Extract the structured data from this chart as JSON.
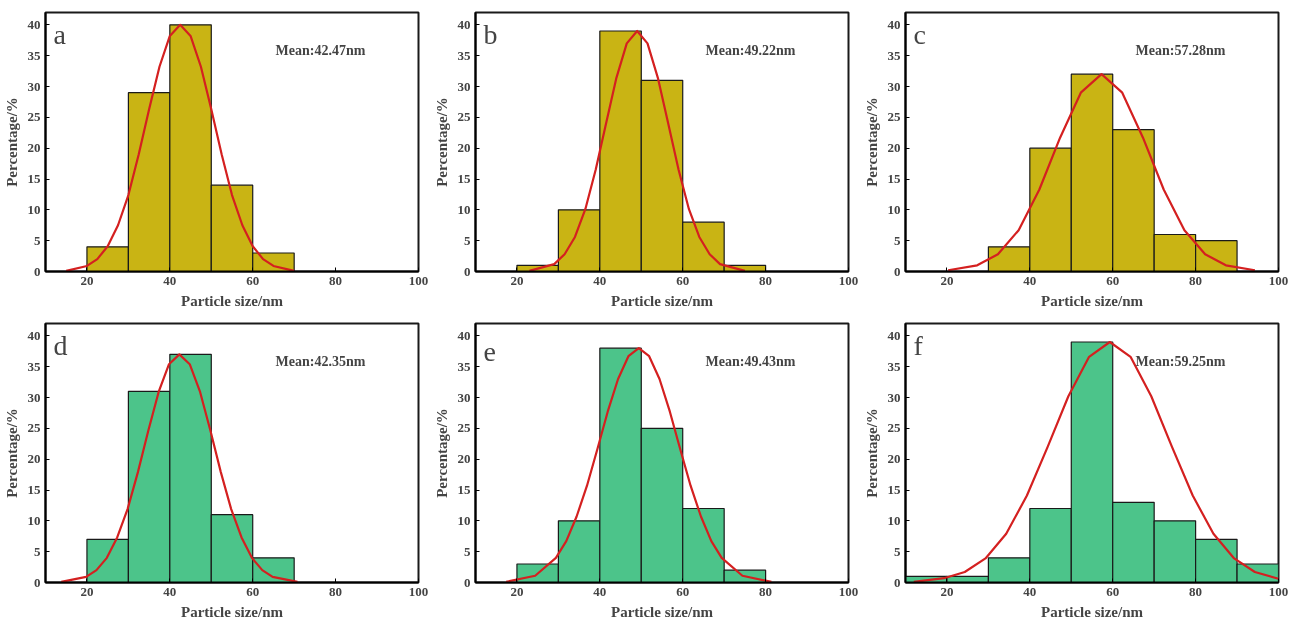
{
  "chart_data": [
    {
      "type": "histogram",
      "xlabel": "Particle size/nm",
      "ylabel": "Percentage/%",
      "annotations": [
        "a",
        "Mean:42.47nm"
      ],
      "xlim": [
        10,
        100
      ],
      "ylim": [
        0,
        42
      ],
      "xticks": [
        20,
        40,
        60,
        80,
        100
      ],
      "yticks": [
        0,
        5,
        10,
        15,
        20,
        25,
        30,
        35,
        40
      ],
      "grid": false,
      "line_style": "solid",
      "series": [
        {
          "color": "#c9b414",
          "bins": [
            20,
            30,
            40,
            50,
            60,
            70
          ],
          "values": [
            4,
            29,
            40,
            14,
            3
          ]
        },
        {
          "type": "line",
          "color": "#d42020",
          "x": [
            15,
            20,
            22.5,
            25,
            27.5,
            30,
            32.5,
            35,
            37.5,
            40,
            42.5,
            45,
            47.5,
            50,
            52.5,
            55,
            57.5,
            60,
            62.5,
            65,
            70
          ],
          "values": [
            0.1,
            0.9,
            2.0,
            4.1,
            7.5,
            12.4,
            19.0,
            26.3,
            33.2,
            38.2,
            40,
            38.2,
            33.2,
            26.3,
            19.0,
            12.4,
            7.5,
            4.1,
            2.0,
            0.9,
            0.1
          ]
        }
      ]
    },
    {
      "type": "histogram",
      "xlabel": "Particle size/nm",
      "ylabel": "Percentage/%",
      "annotations": [
        "b",
        "Mean:49.22nm"
      ],
      "xlim": [
        10,
        100
      ],
      "ylim": [
        0,
        42
      ],
      "xticks": [
        20,
        40,
        60,
        80,
        100
      ],
      "yticks": [
        0,
        5,
        10,
        15,
        20,
        25,
        30,
        35,
        40
      ],
      "grid": false,
      "line_style": "solid",
      "series": [
        {
          "color": "#c9b414",
          "bins": [
            20,
            30,
            40,
            50,
            60,
            70,
            80
          ],
          "values": [
            1,
            10,
            39,
            31,
            8,
            1
          ]
        },
        {
          "type": "line",
          "color": "#d42020",
          "x": [
            23,
            29,
            31.5,
            34,
            36.5,
            39,
            41.5,
            44,
            46.5,
            49,
            51.5,
            54,
            56.5,
            59,
            61.5,
            64,
            66.5,
            69,
            75
          ],
          "values": [
            0.1,
            1.2,
            2.8,
            5.6,
            10.1,
            16.5,
            24.0,
            31.4,
            37.0,
            39,
            37.0,
            31.4,
            24.0,
            16.5,
            10.1,
            5.6,
            2.8,
            1.2,
            0.1
          ]
        }
      ]
    },
    {
      "type": "histogram",
      "xlabel": "Particle size/nm",
      "ylabel": "Percentage/%",
      "annotations": [
        "c",
        "Mean:57.28nm"
      ],
      "xlim": [
        10,
        100
      ],
      "ylim": [
        0,
        42
      ],
      "xticks": [
        20,
        40,
        60,
        80,
        100
      ],
      "yticks": [
        0,
        5,
        10,
        15,
        20,
        25,
        30,
        35,
        40
      ],
      "grid": false,
      "line_style": "solid",
      "series": [
        {
          "color": "#c9b414",
          "bins": [
            30,
            40,
            50,
            60,
            70,
            80,
            90
          ],
          "values": [
            4,
            20,
            32,
            23,
            6,
            5
          ]
        },
        {
          "type": "line",
          "color": "#d42020",
          "x": [
            20.3,
            27.3,
            32.3,
            37.3,
            42.3,
            47.3,
            52.3,
            57.3,
            62.3,
            67.3,
            72.3,
            77.3,
            82.3,
            87.3,
            94.3
          ],
          "values": [
            0.2,
            1.0,
            2.8,
            6.7,
            13.3,
            21.7,
            29.0,
            32,
            29.0,
            21.7,
            13.3,
            6.7,
            2.8,
            1.0,
            0.2
          ]
        }
      ]
    },
    {
      "type": "histogram",
      "xlabel": "Particle size/nm",
      "ylabel": "Percentage/%",
      "annotations": [
        "d",
        "Mean:42.35nm"
      ],
      "xlim": [
        10,
        100
      ],
      "ylim": [
        0,
        42
      ],
      "xticks": [
        20,
        40,
        60,
        80,
        100
      ],
      "yticks": [
        0,
        5,
        10,
        15,
        20,
        25,
        30,
        35,
        40
      ],
      "grid": false,
      "line_style": "solid",
      "series": [
        {
          "color": "#4cc48a",
          "bins": [
            20,
            30,
            40,
            50,
            60,
            70
          ],
          "values": [
            7,
            31,
            37,
            11,
            4
          ]
        },
        {
          "type": "line",
          "color": "#d42020",
          "x": [
            13.8,
            19.8,
            22.3,
            24.8,
            27.3,
            29.8,
            32.3,
            34.8,
            37.3,
            39.8,
            42.3,
            44.8,
            47.3,
            49.8,
            52.3,
            54.8,
            57.3,
            59.8,
            62.3,
            64.8,
            70.8
          ],
          "values": [
            0.1,
            0.9,
            2.0,
            4.0,
            7.3,
            11.9,
            17.9,
            24.6,
            30.9,
            35.4,
            37,
            35.4,
            30.9,
            24.6,
            17.9,
            11.9,
            7.3,
            4.0,
            2.0,
            0.9,
            0.1
          ]
        }
      ]
    },
    {
      "type": "histogram",
      "xlabel": "Particle size/nm",
      "ylabel": "Percentage/%",
      "annotations": [
        "e",
        "Mean:49.43nm"
      ],
      "xlim": [
        10,
        100
      ],
      "ylim": [
        0,
        42
      ],
      "xticks": [
        20,
        40,
        60,
        80,
        100
      ],
      "yticks": [
        0,
        5,
        10,
        15,
        20,
        25,
        30,
        35,
        40
      ],
      "grid": false,
      "line_style": "solid",
      "series": [
        {
          "color": "#4cc48a",
          "bins": [
            20,
            30,
            40,
            50,
            60,
            70,
            80
          ],
          "values": [
            3,
            10,
            38,
            25,
            12,
            2
          ]
        },
        {
          "type": "line",
          "color": "#d42020",
          "x": [
            17.4,
            24.4,
            29.4,
            31.9,
            34.4,
            36.9,
            39.4,
            41.9,
            44.4,
            46.9,
            49.4,
            51.9,
            54.4,
            56.9,
            59.4,
            61.9,
            64.4,
            66.9,
            69.4,
            74.4,
            81.4
          ],
          "values": [
            0.1,
            1.1,
            4.0,
            6.7,
            10.7,
            15.7,
            21.6,
            27.7,
            33.0,
            36.7,
            38,
            36.7,
            33.0,
            27.7,
            21.6,
            15.7,
            10.7,
            6.7,
            4.0,
            1.1,
            0.1
          ]
        }
      ]
    },
    {
      "type": "histogram",
      "xlabel": "Particle size/nm",
      "ylabel": "Percentage/%",
      "annotations": [
        "f",
        "Mean:59.25nm"
      ],
      "xlim": [
        10,
        100
      ],
      "ylim": [
        0,
        42
      ],
      "xticks": [
        20,
        40,
        60,
        80,
        100
      ],
      "yticks": [
        0,
        5,
        10,
        15,
        20,
        25,
        30,
        35,
        40
      ],
      "grid": false,
      "line_style": "solid",
      "series": [
        {
          "color": "#4cc48a",
          "bins": [
            10,
            20,
            30,
            40,
            50,
            60,
            70,
            80,
            90,
            100
          ],
          "values": [
            1,
            1,
            4,
            12,
            39,
            13,
            10,
            7,
            3
          ]
        },
        {
          "type": "line",
          "color": "#d42020",
          "x": [
            12,
            19.3,
            24.3,
            29.3,
            34.3,
            39.3,
            44.3,
            49.3,
            54.3,
            59.3,
            64.3,
            69.3,
            74.3,
            79.3,
            84.3,
            89.3,
            94.3,
            100
          ],
          "values": [
            0.1,
            0.7,
            1.7,
            3.9,
            7.9,
            14.1,
            22.0,
            30.2,
            36.6,
            39,
            36.6,
            30.2,
            22.0,
            14.1,
            7.9,
            3.9,
            1.7,
            0.6
          ]
        }
      ]
    }
  ]
}
